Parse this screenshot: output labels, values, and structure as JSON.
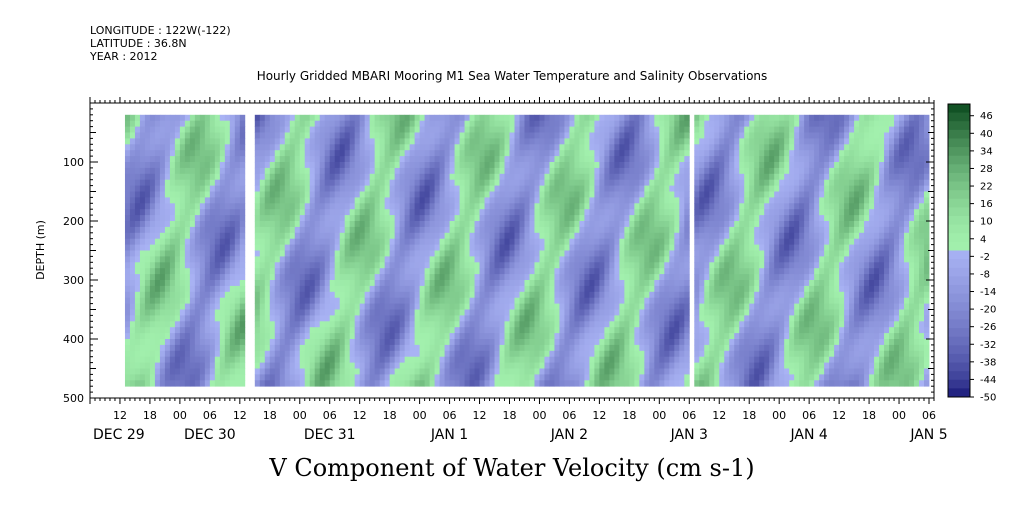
{
  "header": {
    "longitude": "LONGITUDE : 122W(-122)",
    "latitude": "LATITUDE : 36.8N",
    "year": "YEAR : 2012"
  },
  "chart_data": {
    "type": "heatmap",
    "title": "Hourly Gridded MBARI Mooring M1 Sea Water Temperature and Salinity Observations",
    "xlabel": "V Component of Water Velocity (cm s-1)",
    "ylabel": "DEPTH (m)",
    "y_reversed": true,
    "ylim": [
      0,
      500
    ],
    "data_depth_range": [
      20,
      480
    ],
    "y_ticks": [
      100,
      200,
      300,
      400,
      500
    ],
    "x_hours_range": [
      0,
      169
    ],
    "x_hour_ticks": [
      "12",
      "18",
      "00",
      "06",
      "12",
      "18",
      "00",
      "06",
      "12",
      "18",
      "00",
      "06",
      "12",
      "18",
      "00",
      "06",
      "12",
      "18",
      "00",
      "06",
      "12",
      "18",
      "00",
      "06",
      "12",
      "18",
      "00",
      "06"
    ],
    "x_days": [
      "DEC 29",
      "DEC 30",
      "DEC 31",
      "JAN  1",
      "JAN  2",
      "JAN  3",
      "JAN  4",
      "JAN  5"
    ],
    "data_gaps_hours": [
      [
        0,
        6.6
      ],
      [
        30.3,
        32.2
      ],
      [
        119.6,
        120.6
      ],
      [
        167.4,
        169
      ]
    ],
    "colorbar": {
      "labels": [
        "46",
        "40",
        "34",
        "28",
        "22",
        "16",
        "10",
        "4",
        "-2",
        "-8",
        "-14",
        "-20",
        "-26",
        "-32",
        "-38",
        "-44",
        "-50"
      ],
      "range": [
        -50,
        50
      ],
      "low_color": "#0b0b6e",
      "mid_low_color": "#a9b3f4",
      "mid_high_color": "#a2f0ad",
      "high_color": "#0b4a1e"
    }
  }
}
